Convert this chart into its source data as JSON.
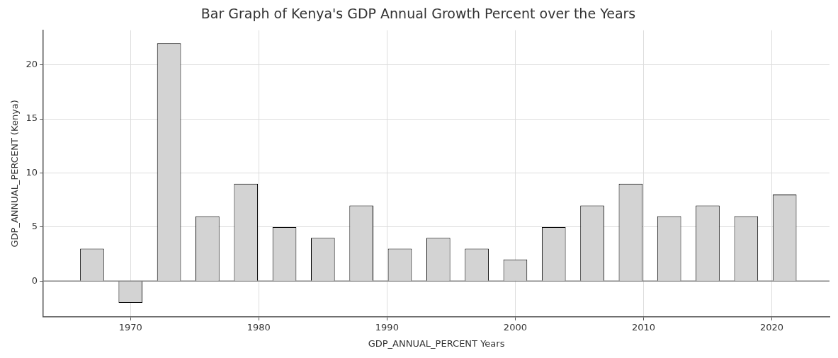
{
  "chart_data": {
    "type": "bar",
    "title": "Bar Graph of Kenya's GDP Annual Growth Percent over the Years",
    "xlabel": "GDP_ANNUAL_PERCENT Years",
    "ylabel": "GDP_ANNUAL_PERCENT (Kenya)",
    "x": [
      1967,
      1970,
      1973,
      1976,
      1979,
      1982,
      1985,
      1988,
      1991,
      1994,
      1997,
      2000,
      2003,
      2006,
      2009,
      2012,
      2015,
      2018,
      2021
    ],
    "values": [
      3,
      -2,
      22,
      6,
      9,
      5,
      4,
      7,
      3,
      4,
      3,
      2,
      5,
      7,
      9,
      6,
      7,
      6,
      8
    ],
    "color": "#d3d3d3",
    "xlim": [
      1963.2,
      2024.5
    ],
    "xticks": [
      1970,
      1980,
      1990,
      2000,
      2010,
      2020
    ],
    "ylim": [
      -3.3,
      23.2
    ],
    "yticks": [
      0,
      5,
      10,
      15,
      20
    ],
    "ref_lines": [
      {
        "axis": "y",
        "value": 0,
        "color": "#808080"
      }
    ],
    "grid": true
  }
}
